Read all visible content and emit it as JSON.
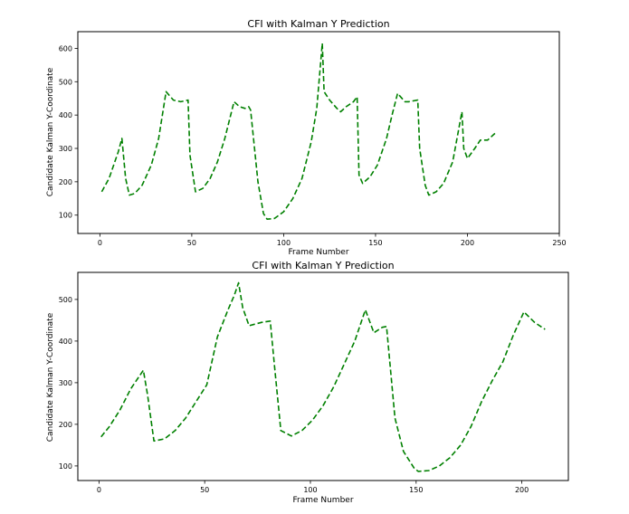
{
  "chart_data": [
    {
      "type": "line",
      "title": "CFI with Kalman Y Prediction",
      "xlabel": "Frame Number",
      "ylabel": "Candidate Kalman Y-Coordinate",
      "xlim": [
        -12,
        250
      ],
      "ylim": [
        45,
        650
      ],
      "xticks": [
        0,
        50,
        100,
        150,
        200,
        250
      ],
      "yticks": [
        100,
        200,
        300,
        400,
        500,
        600
      ],
      "grid": false,
      "series": [
        {
          "color": "#008000",
          "linestyle": "dashed",
          "points": [
            [
              1,
              170
            ],
            [
              5,
              210
            ],
            [
              10,
              290
            ],
            [
              12,
              330
            ],
            [
              14,
              210
            ],
            [
              16,
              160
            ],
            [
              19,
              165
            ],
            [
              23,
              190
            ],
            [
              28,
              250
            ],
            [
              32,
              330
            ],
            [
              36,
              470
            ],
            [
              40,
              445
            ],
            [
              44,
              440
            ],
            [
              48,
              445
            ],
            [
              49,
              280
            ],
            [
              52,
              170
            ],
            [
              56,
              180
            ],
            [
              60,
              210
            ],
            [
              64,
              260
            ],
            [
              68,
              330
            ],
            [
              73,
              440
            ],
            [
              76,
              425
            ],
            [
              79,
              420
            ],
            [
              81,
              425
            ],
            [
              82,
              415
            ],
            [
              86,
              200
            ],
            [
              89,
              105
            ],
            [
              91,
              88
            ],
            [
              95,
              90
            ],
            [
              100,
              110
            ],
            [
              105,
              150
            ],
            [
              110,
              210
            ],
            [
              115,
              320
            ],
            [
              118,
              420
            ],
            [
              121,
              615
            ],
            [
              122,
              470
            ],
            [
              125,
              445
            ],
            [
              129,
              420
            ],
            [
              131,
              410
            ],
            [
              134,
              425
            ],
            [
              138,
              440
            ],
            [
              140,
              455
            ],
            [
              141,
              220
            ],
            [
              143,
              195
            ],
            [
              147,
              215
            ],
            [
              151,
              250
            ],
            [
              156,
              330
            ],
            [
              159,
              400
            ],
            [
              162,
              465
            ],
            [
              166,
              440
            ],
            [
              168,
              440
            ],
            [
              173,
              445
            ],
            [
              174,
              300
            ],
            [
              177,
              190
            ],
            [
              179,
              160
            ],
            [
              183,
              170
            ],
            [
              187,
              195
            ],
            [
              192,
              260
            ],
            [
              197,
              410
            ],
            [
              198,
              300
            ],
            [
              200,
              270
            ],
            [
              204,
              300
            ],
            [
              207,
              325
            ],
            [
              211,
              325
            ],
            [
              215,
              345
            ]
          ]
        }
      ]
    },
    {
      "type": "line",
      "title": "CFI with Kalman Y Prediction",
      "xlabel": "Frame Number",
      "ylabel": "Candidate Kalman Y-Coordinate",
      "xlim": [
        -10,
        222
      ],
      "ylim": [
        65,
        565
      ],
      "xticks": [
        0,
        50,
        100,
        150,
        200
      ],
      "yticks": [
        100,
        200,
        300,
        400,
        500
      ],
      "grid": false,
      "series": [
        {
          "color": "#008000",
          "linestyle": "dashed",
          "points": [
            [
              1,
              170
            ],
            [
              5,
              195
            ],
            [
              10,
              235
            ],
            [
              15,
              285
            ],
            [
              21,
              330
            ],
            [
              23,
              270
            ],
            [
              26,
              160
            ],
            [
              31,
              165
            ],
            [
              36,
              185
            ],
            [
              41,
              215
            ],
            [
              46,
              255
            ],
            [
              51,
              295
            ],
            [
              56,
              410
            ],
            [
              61,
              475
            ],
            [
              64,
              510
            ],
            [
              66,
              540
            ],
            [
              68,
              480
            ],
            [
              71,
              437
            ],
            [
              77,
              445
            ],
            [
              81,
              448
            ],
            [
              83,
              340
            ],
            [
              86,
              185
            ],
            [
              91,
              172
            ],
            [
              96,
              185
            ],
            [
              101,
              210
            ],
            [
              106,
              245
            ],
            [
              111,
              290
            ],
            [
              116,
              345
            ],
            [
              121,
              400
            ],
            [
              126,
              475
            ],
            [
              130,
              420
            ],
            [
              134,
              433
            ],
            [
              136,
              435
            ],
            [
              140,
              215
            ],
            [
              144,
              135
            ],
            [
              149,
              95
            ],
            [
              151,
              87
            ],
            [
              156,
              89
            ],
            [
              161,
              100
            ],
            [
              166,
              120
            ],
            [
              171,
              150
            ],
            [
              176,
              195
            ],
            [
              181,
              255
            ],
            [
              186,
              305
            ],
            [
              191,
              350
            ],
            [
              196,
              415
            ],
            [
              201,
              470
            ],
            [
              206,
              445
            ],
            [
              211,
              428
            ]
          ]
        }
      ]
    }
  ]
}
